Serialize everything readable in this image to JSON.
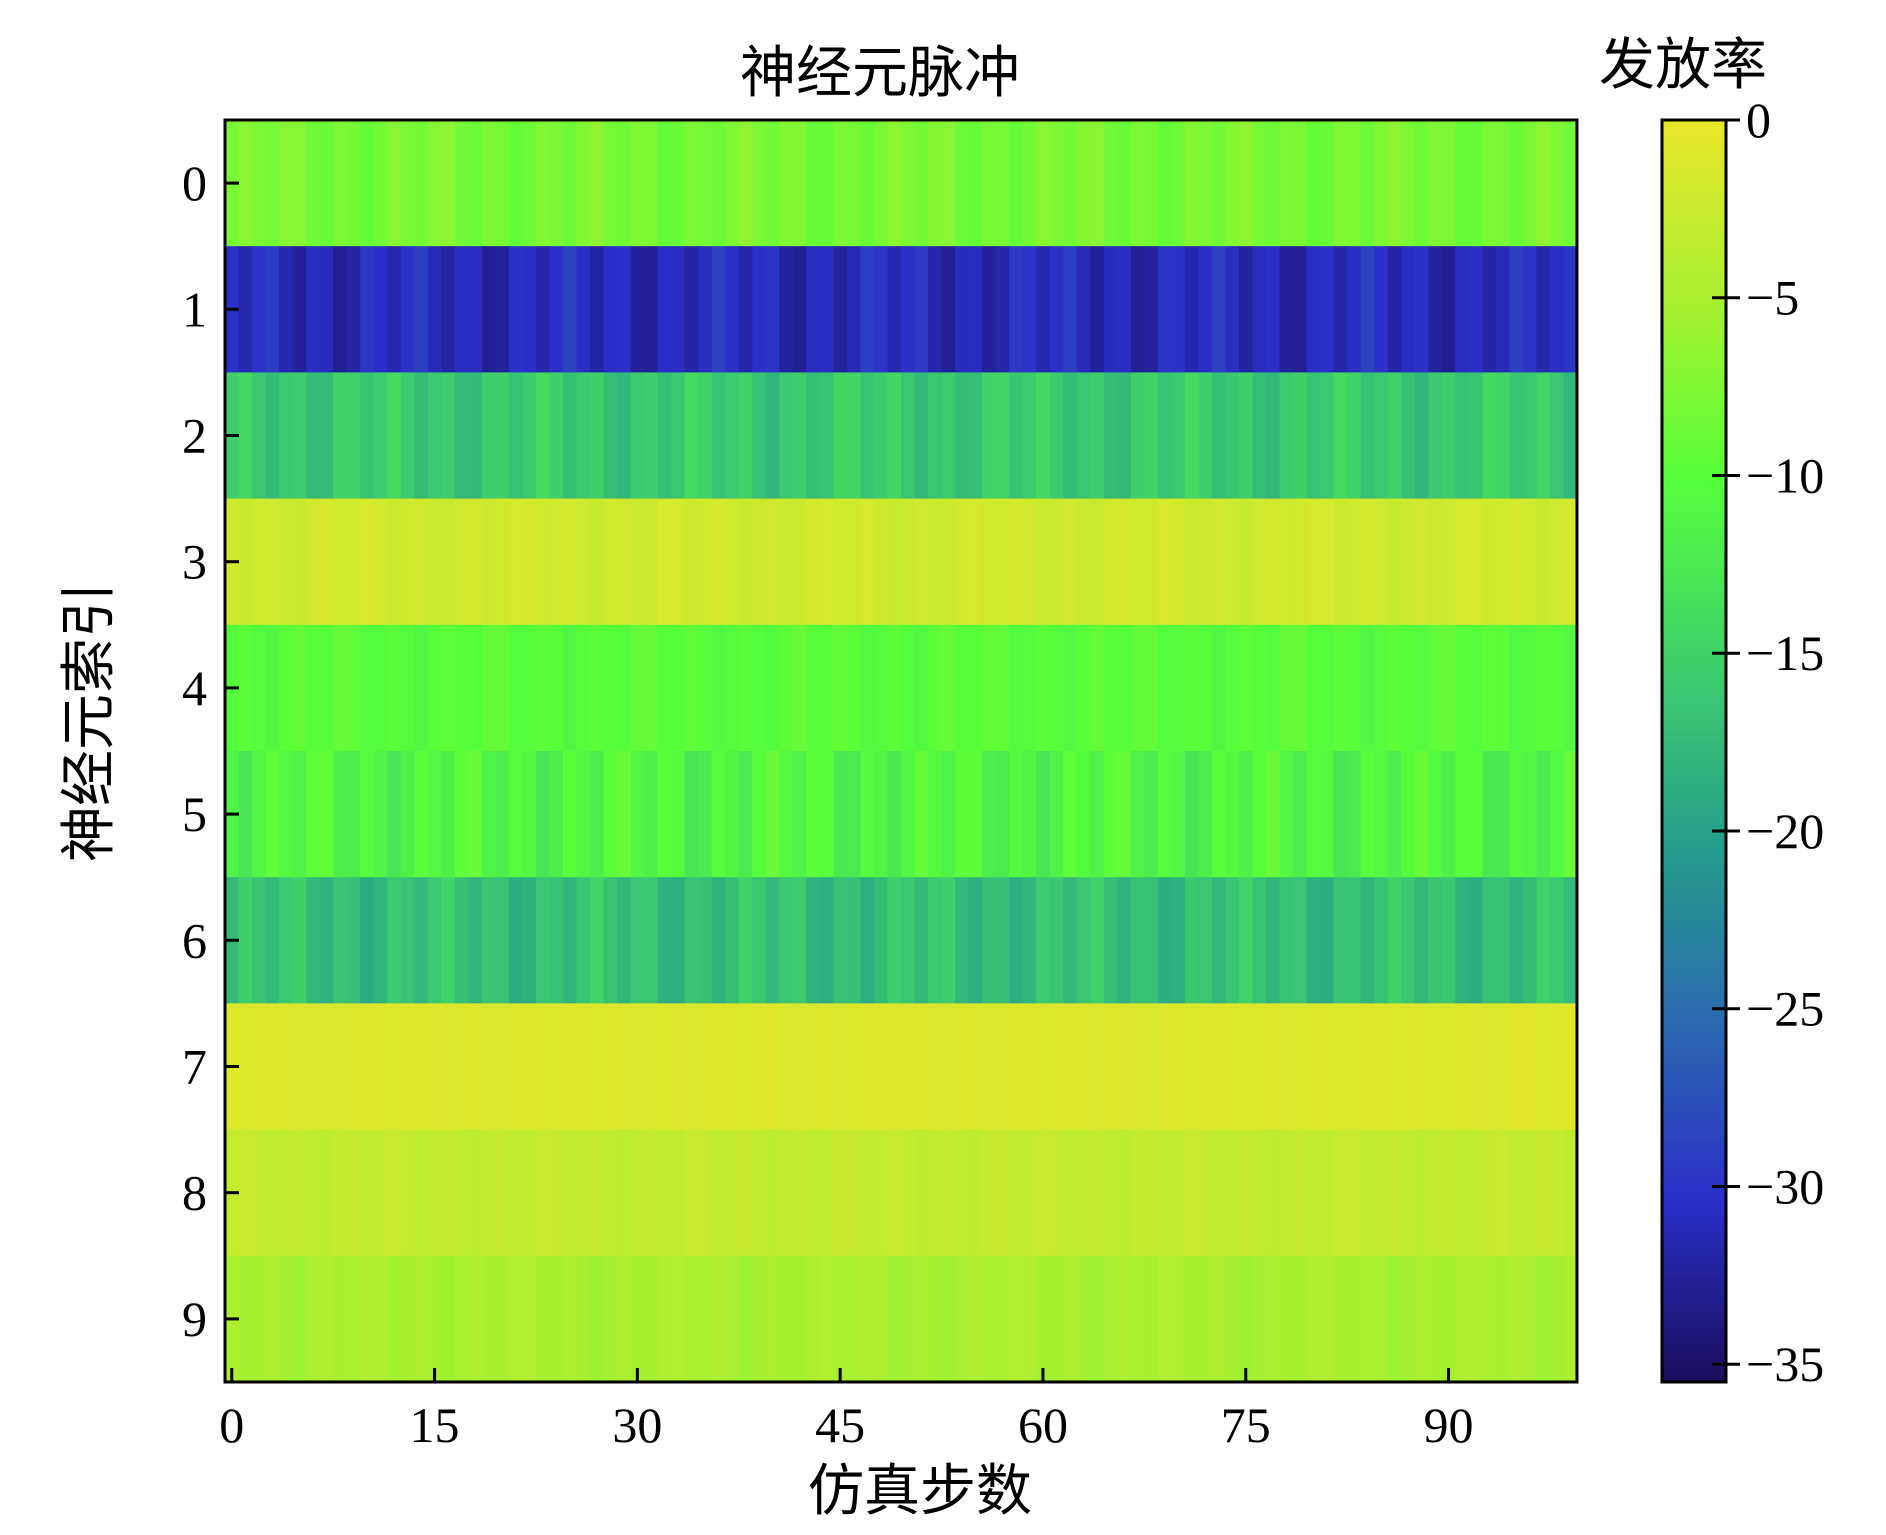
{
  "chart_data": {
    "type": "heatmap",
    "title": "神经元脉冲",
    "xlabel": "仿真步数",
    "ylabel": "神经元索引",
    "colorbar_label": "发放率",
    "x_range": [
      0,
      99
    ],
    "x_ticks": [
      0,
      15,
      30,
      45,
      60,
      75,
      90
    ],
    "x_tick_labels": [
      "0",
      "15",
      "30",
      "45",
      "60",
      "75",
      "90"
    ],
    "y_categories": [
      "0",
      "1",
      "2",
      "3",
      "4",
      "5",
      "6",
      "7",
      "8",
      "9"
    ],
    "color_range": [
      -35.5,
      0
    ],
    "colorbar_ticks": [
      0,
      -5,
      -10,
      -15,
      -20,
      -25,
      -30,
      -35
    ],
    "colorbar_tick_labels": [
      "0",
      "−5",
      "−10",
      "−15",
      "−20",
      "−25",
      "−30",
      "−35"
    ],
    "colormap": [
      "#1a0e5c",
      "#2a2fc8",
      "#2c6ab0",
      "#25a08a",
      "#3fd06a",
      "#55ff3a",
      "#a8f030",
      "#e8e628"
    ],
    "rows": [
      {
        "neuron": "0",
        "base": -8,
        "noise": 1.5
      },
      {
        "neuron": "1",
        "base": -31,
        "noise": 2.2
      },
      {
        "neuron": "2",
        "base": -16,
        "noise": 2.0
      },
      {
        "neuron": "3",
        "base": -2,
        "noise": 0.8
      },
      {
        "neuron": "4",
        "base": -10,
        "noise": 1.0
      },
      {
        "neuron": "5",
        "base": -11,
        "noise": 2.2
      },
      {
        "neuron": "6",
        "base": -17,
        "noise": 2.2
      },
      {
        "neuron": "7",
        "base": -1,
        "noise": 0.3
      },
      {
        "neuron": "8",
        "base": -3,
        "noise": 0.6
      },
      {
        "neuron": "9",
        "base": -5,
        "noise": 0.8
      }
    ],
    "grid": false
  }
}
